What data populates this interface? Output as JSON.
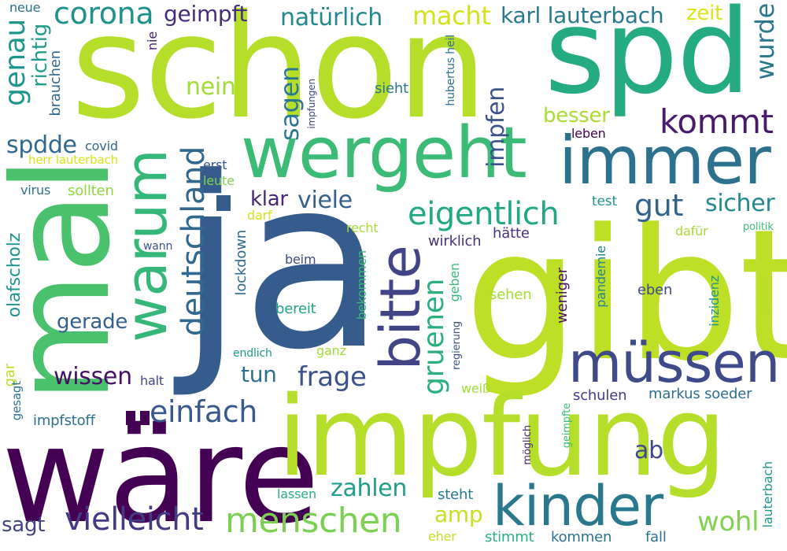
{
  "words": [
    {
      "text": "schon",
      "color": "#b5de2b"
    },
    {
      "text": "spd",
      "color": "#25ab82"
    },
    {
      "text": "mal",
      "color": "#4ac16d"
    },
    {
      "text": "ja",
      "color": "#365c8d"
    },
    {
      "text": "gibt",
      "color": "#bddf26"
    },
    {
      "text": "wäre",
      "color": "#440154"
    },
    {
      "text": "impfung",
      "color": "#b5de2b"
    },
    {
      "text": "wergeht",
      "color": "#3bbb75"
    },
    {
      "text": "immer",
      "color": "#2c718e"
    },
    {
      "text": "warum",
      "color": "#35b779"
    },
    {
      "text": "bitte",
      "color": "#414487"
    },
    {
      "text": "müssen",
      "color": "#3e4a89"
    },
    {
      "text": "kinder",
      "color": "#2a788e"
    },
    {
      "text": "menschen",
      "color": "#7ad151"
    },
    {
      "text": "vielleicht",
      "color": "#443a83"
    },
    {
      "text": "einfach",
      "color": "#38598c"
    },
    {
      "text": "deutschland",
      "color": "#31688e"
    },
    {
      "text": "gruenen",
      "color": "#2ab07f"
    },
    {
      "text": "eigentlich",
      "color": "#22a884"
    },
    {
      "text": "kommt",
      "color": "#481a6c"
    },
    {
      "text": "corona",
      "color": "#21918c"
    },
    {
      "text": "geimpft",
      "color": "#472d7b"
    },
    {
      "text": "natürlich",
      "color": "#23898e"
    },
    {
      "text": "macht",
      "color": "#d2e21b"
    },
    {
      "text": "karl lauterbach",
      "color": "#29798e"
    },
    {
      "text": "zeit",
      "color": "#dde318"
    },
    {
      "text": "wurde",
      "color": "#2a788e"
    },
    {
      "text": "genau",
      "color": "#1f968b"
    },
    {
      "text": "richtig",
      "color": "#1e9c89"
    },
    {
      "text": "nein",
      "color": "#a2da37"
    },
    {
      "text": "sagen",
      "color": "#2a788e"
    },
    {
      "text": "impfen",
      "color": "#3b528b"
    },
    {
      "text": "besser",
      "color": "#aadc32"
    },
    {
      "text": "spdde",
      "color": "#30698e"
    },
    {
      "text": "gut",
      "color": "#33638d"
    },
    {
      "text": "sicher",
      "color": "#23898e"
    },
    {
      "text": "klar",
      "color": "#482576"
    },
    {
      "text": "viele",
      "color": "#355f8d"
    },
    {
      "text": "frage",
      "color": "#3b528b"
    },
    {
      "text": "tun",
      "color": "#2e6f8e"
    },
    {
      "text": "wissen",
      "color": "#471063"
    },
    {
      "text": "gerade",
      "color": "#34608d"
    },
    {
      "text": "zahlen",
      "color": "#1f9e89"
    },
    {
      "text": "amp",
      "color": "#c8e020"
    },
    {
      "text": "wohl",
      "color": "#7fd34e"
    },
    {
      "text": "ab",
      "color": "#3e4989"
    },
    {
      "text": "sagt",
      "color": "#414487"
    },
    {
      "text": "olafscholz",
      "color": "#1f948c"
    },
    {
      "text": "neue",
      "color": "#2c718e"
    },
    {
      "text": "nie",
      "color": "#481c6e"
    },
    {
      "text": "brauchen",
      "color": "#31688e"
    },
    {
      "text": "covid",
      "color": "#31688e"
    },
    {
      "text": "herr lauterbach",
      "color": "#d8e219"
    },
    {
      "text": "virus",
      "color": "#2d708e"
    },
    {
      "text": "sollten",
      "color": "#8fd744"
    },
    {
      "text": "erst",
      "color": "#3a548c"
    },
    {
      "text": "leute",
      "color": "#7fd34e"
    },
    {
      "text": "darf",
      "color": "#d2e21b"
    },
    {
      "text": "recht",
      "color": "#a8db34"
    },
    {
      "text": "hätte",
      "color": "#46327e"
    },
    {
      "text": "dafür",
      "color": "#a5db36"
    },
    {
      "text": "politik",
      "color": "#3bbb75"
    },
    {
      "text": "wirklich",
      "color": "#46307e"
    },
    {
      "text": "wann",
      "color": "#3b528b"
    },
    {
      "text": "beim",
      "color": "#3e4a89"
    },
    {
      "text": "lockdown",
      "color": "#30698e"
    },
    {
      "text": "bekommen",
      "color": "#3aba76"
    },
    {
      "text": "geben",
      "color": "#3aba76"
    },
    {
      "text": "bereit",
      "color": "#1fa188"
    },
    {
      "text": "sehen",
      "color": "#a5db36"
    },
    {
      "text": "pandemie",
      "color": "#26828e"
    },
    {
      "text": "weniger",
      "color": "#471063"
    },
    {
      "text": "eben",
      "color": "#3e4989"
    },
    {
      "text": "inzidenz",
      "color": "#1f968b"
    },
    {
      "text": "gehen",
      "color": "#b5de2b"
    },
    {
      "text": "endlich",
      "color": "#1f9a8a"
    },
    {
      "text": "ganz",
      "color": "#a2da37"
    },
    {
      "text": "regierung",
      "color": "#3b528b"
    },
    {
      "text": "weiß",
      "color": "#a2da37"
    },
    {
      "text": "schulen",
      "color": "#443b84"
    },
    {
      "text": "markus soeder",
      "color": "#2e6e8e"
    },
    {
      "text": "halt",
      "color": "#3f4788"
    },
    {
      "text": "gar",
      "color": "#b8de29"
    },
    {
      "text": "gesagt",
      "color": "#2c728e"
    },
    {
      "text": "impfstoff",
      "color": "#2d708e"
    },
    {
      "text": "möglich",
      "color": "#482878"
    },
    {
      "text": "geimpfte",
      "color": "#3bbb75"
    },
    {
      "text": "lauterbach",
      "color": "#1f968b"
    },
    {
      "text": "lassen",
      "color": "#2ab07f"
    },
    {
      "text": "steht",
      "color": "#2a788e"
    },
    {
      "text": "eher",
      "color": "#c2df23"
    },
    {
      "text": "stimmt",
      "color": "#2ab07f"
    },
    {
      "text": "kommen",
      "color": "#2c728e"
    },
    {
      "text": "fall",
      "color": "#2c728e"
    },
    {
      "text": "hubertus heil",
      "color": "#2c728e"
    },
    {
      "text": "impfungen",
      "color": "#414487"
    },
    {
      "text": "sieht",
      "color": "#2a788e"
    },
    {
      "text": "test",
      "color": "#1f948c"
    },
    {
      "text": "leben",
      "color": "#440154"
    }
  ]
}
